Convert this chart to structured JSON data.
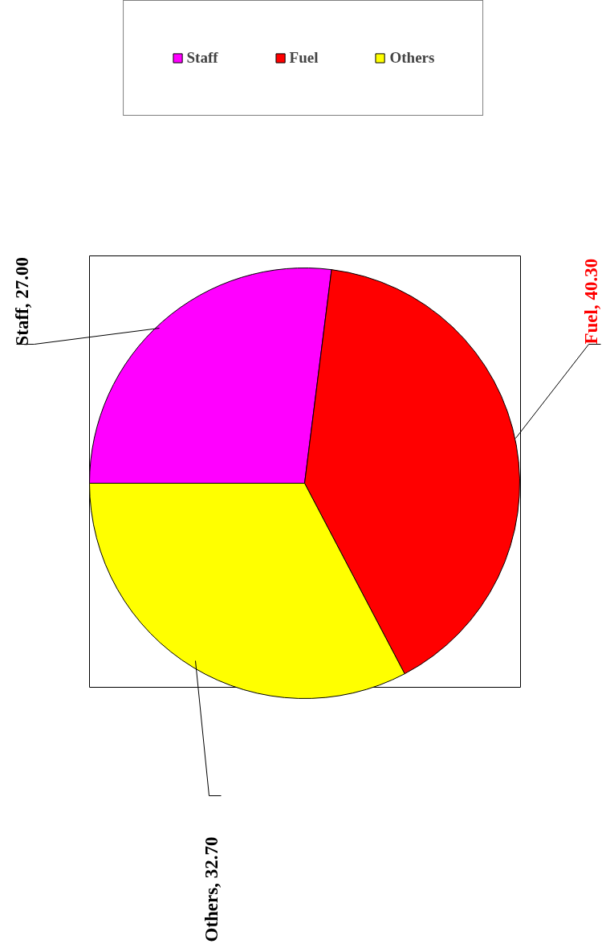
{
  "chart_data": {
    "type": "pie",
    "categories": [
      "Staff",
      "Fuel",
      "Others"
    ],
    "values": [
      27.0,
      40.3,
      32.7
    ],
    "colors": [
      "#ff00ff",
      "#ff0000",
      "#ffff00"
    ],
    "value_labels": [
      "Staff, 27.00",
      "Fuel, 40.30",
      "Others, 32.70"
    ],
    "legend": "top"
  }
}
